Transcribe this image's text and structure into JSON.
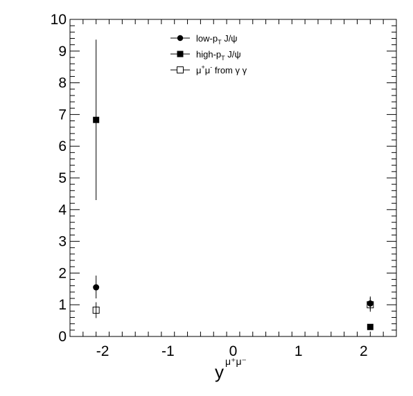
{
  "chart_data": {
    "type": "scatter",
    "title": "",
    "xlabel": "y",
    "xlabel_superscript": "μ⁺μ⁻",
    "ylabel": "",
    "xlim": [
      -2.5,
      2.5
    ],
    "ylim": [
      0,
      10
    ],
    "x_ticks": [
      -2,
      -1,
      0,
      1,
      2
    ],
    "x_tick_labels": [
      "-2",
      "-1",
      "0",
      "1",
      "2"
    ],
    "y_ticks": [
      0,
      1,
      2,
      3,
      4,
      5,
      6,
      7,
      8,
      9,
      10
    ],
    "y_tick_labels": [
      "0",
      "1",
      "2",
      "3",
      "4",
      "5",
      "6",
      "7",
      "8",
      "9",
      "10"
    ],
    "grid": false,
    "legend_position": "top-center",
    "series": [
      {
        "name": "low-pT J/ψ",
        "legend": {
          "base": "low-p",
          "sub": "T",
          "rest": " J/ψ"
        },
        "marker": "filled-circle",
        "points": [
          {
            "x": -2.1,
            "y": 1.55,
            "err_low": 0.35,
            "err_high": 0.37
          },
          {
            "x": 2.1,
            "y": 1.04,
            "err_low": 0.2,
            "err_high": 0.22
          }
        ]
      },
      {
        "name": "high-pT J/ψ",
        "legend": {
          "base": "high-p",
          "sub": "T",
          "rest": " J/ψ"
        },
        "marker": "filled-square",
        "points": [
          {
            "x": -2.1,
            "y": 6.83,
            "err_low": 2.53,
            "err_high": 2.53
          },
          {
            "x": 2.1,
            "y": 0.3,
            "err_low": 0.06,
            "err_high": 0.06
          }
        ]
      },
      {
        "name": "μ⁺μ⁻ from γ γ",
        "legend": {
          "base": "μ",
          "sup1": "+",
          "mid": "μ",
          "sup2": "-",
          "rest": " from γ γ"
        },
        "marker": "open-square",
        "points": [
          {
            "x": -2.1,
            "y": 0.83,
            "err_low": 0.25,
            "err_high": 0.25
          },
          {
            "x": 2.1,
            "y": 1.0,
            "err_low": 0.22,
            "err_high": 0.22
          }
        ]
      }
    ]
  }
}
